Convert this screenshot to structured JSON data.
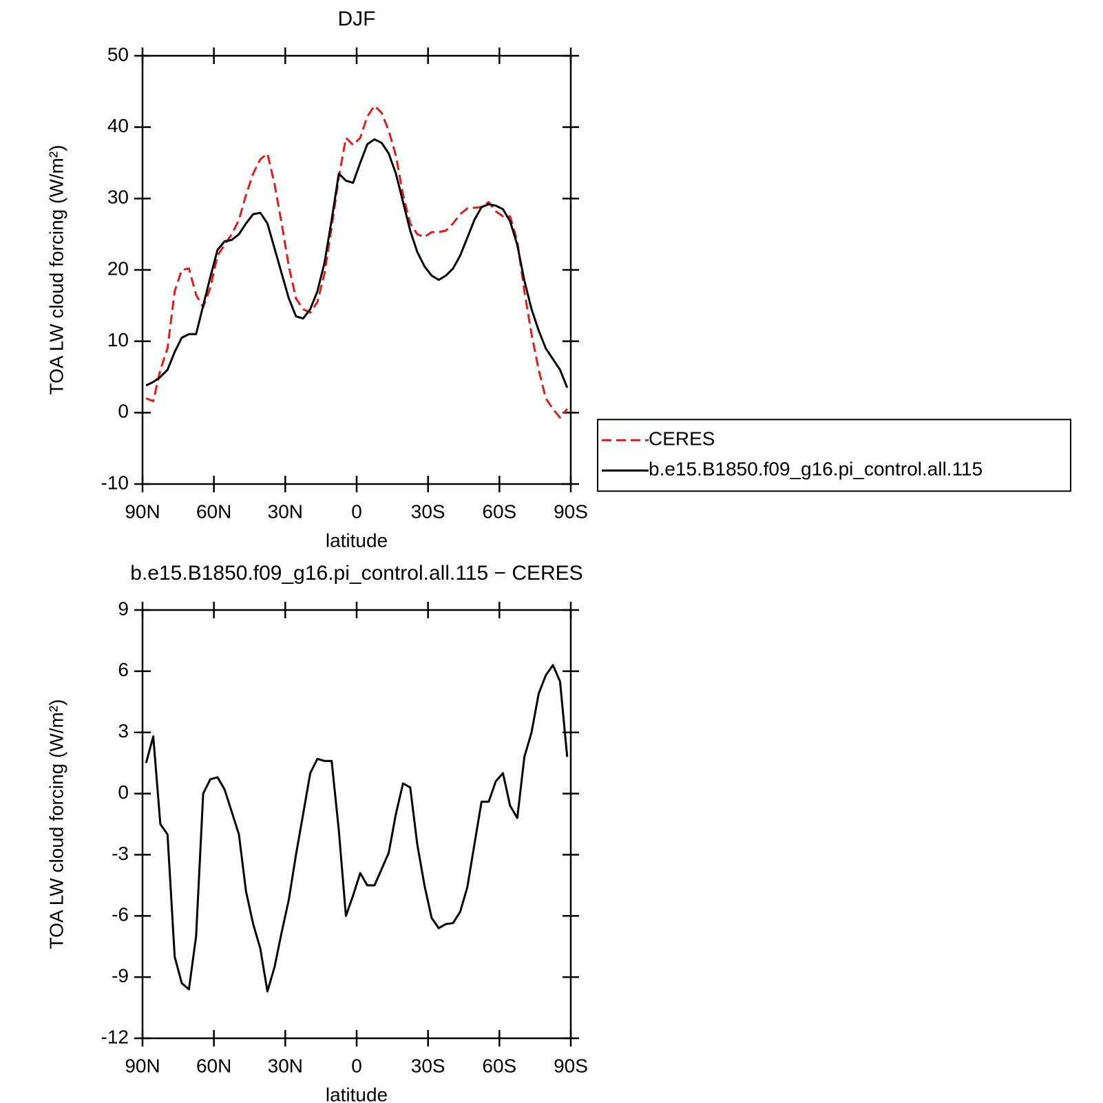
{
  "chart_data": [
    {
      "type": "line",
      "title": "DJF",
      "xlabel": "latitude",
      "ylabel": "TOA LW cloud forcing (W/m²)",
      "x": [
        88.5,
        85.5,
        82.5,
        79.5,
        76.5,
        73.5,
        70.5,
        67.5,
        64.5,
        61.5,
        58.5,
        55.5,
        52.5,
        49.5,
        46.5,
        43.5,
        40.5,
        37.5,
        34.5,
        31.5,
        28.5,
        25.5,
        22.5,
        19.5,
        16.5,
        13.5,
        10.5,
        7.5,
        4.5,
        1.5,
        -1.5,
        -4.5,
        -7.5,
        -10.5,
        -13.5,
        -16.5,
        -19.5,
        -22.5,
        -25.5,
        -28.5,
        -31.5,
        -34.5,
        -37.5,
        -40.5,
        -43.5,
        -46.5,
        -49.5,
        -52.5,
        -55.5,
        -58.5,
        -61.5,
        -64.5,
        -67.5,
        -70.5,
        -73.5,
        -76.5,
        -79.5,
        -82.5,
        -85.5,
        -88.5
      ],
      "series": [
        {
          "name": "CERES",
          "color": "#e41a1c",
          "dashed": true,
          "values": [
            2,
            1.6,
            6,
            9,
            17,
            20,
            20.2,
            16.5,
            14.8,
            17.5,
            22,
            23.5,
            25,
            27,
            30.5,
            33.5,
            35.5,
            36.3,
            32,
            26.5,
            20.5,
            16,
            14.5,
            14,
            15.5,
            19.5,
            26,
            33,
            38.5,
            37.5,
            38.5,
            41.5,
            43,
            42,
            39.5,
            36,
            30.5,
            26.5,
            25,
            24.6,
            25.3,
            25.3,
            25.5,
            26.5,
            27.8,
            28.6,
            28.7,
            28.8,
            29.5,
            28.2,
            27.5,
            27.5,
            24,
            17,
            11,
            6,
            2,
            0.5,
            -0.7,
            0.5
          ]
        },
        {
          "name": "b.e15.B1850.f09_g16.pi_control.all.115",
          "color": "#000000",
          "dashed": false,
          "values": [
            3.8,
            4.3,
            5,
            6,
            8.5,
            10.5,
            11,
            11,
            15,
            19,
            22.8,
            24,
            24.2,
            25,
            26.5,
            27.8,
            28,
            26.5,
            23,
            19.5,
            16,
            13.5,
            13.2,
            14.5,
            17,
            21,
            27,
            33.5,
            32.5,
            32.2,
            35,
            37.6,
            38.3,
            37.8,
            36.3,
            33.5,
            29.5,
            25.5,
            22.5,
            20.5,
            19.2,
            18.6,
            19.2,
            20.2,
            22,
            24.5,
            27,
            28.8,
            29.2,
            29,
            28.5,
            26.8,
            23.5,
            18.5,
            14.5,
            11.5,
            9,
            7.5,
            6,
            3.5
          ]
        }
      ],
      "xlim": [
        90,
        -90
      ],
      "xticks": [
        {
          "value": 90,
          "label": "90N"
        },
        {
          "value": 60,
          "label": "60N"
        },
        {
          "value": 30,
          "label": "30N"
        },
        0,
        {
          "value": -30,
          "label": "30S"
        },
        {
          "value": -60,
          "label": "60S"
        },
        {
          "value": -90,
          "label": "90S"
        }
      ],
      "ylim": [
        -10,
        50
      ],
      "yticks": [
        -10,
        0,
        10,
        20,
        30,
        40,
        50
      ],
      "legend": "right"
    },
    {
      "type": "line",
      "title": "b.e15.B1850.f09_g16.pi_control.all.115 − CERES",
      "xlabel": "latitude",
      "ylabel": "TOA LW cloud forcing (W/m²)",
      "x": [
        88.5,
        85.5,
        82.5,
        79.5,
        76.5,
        73.5,
        70.5,
        67.5,
        64.5,
        61.5,
        58.5,
        55.5,
        52.5,
        49.5,
        46.5,
        43.5,
        40.5,
        37.5,
        34.5,
        31.5,
        28.5,
        25.5,
        22.5,
        19.5,
        16.5,
        13.5,
        10.5,
        7.5,
        4.5,
        1.5,
        -1.5,
        -4.5,
        -7.5,
        -10.5,
        -13.5,
        -16.5,
        -19.5,
        -22.5,
        -25.5,
        -28.5,
        -31.5,
        -34.5,
        -37.5,
        -40.5,
        -43.5,
        -46.5,
        -49.5,
        -52.5,
        -55.5,
        -58.5,
        -61.5,
        -64.5,
        -67.5,
        -70.5,
        -73.5,
        -76.5,
        -79.5,
        -82.5,
        -85.5,
        -88.5
      ],
      "series": [
        {
          "color": "#000000",
          "dashed": false,
          "values": [
            1.5,
            2.8,
            -1.5,
            -2,
            -8,
            -9.3,
            -9.6,
            -7,
            0,
            0.7,
            0.8,
            0.2,
            -0.9,
            -2,
            -4.8,
            -6.4,
            -7.6,
            -9.7,
            -8.5,
            -6.8,
            -5.2,
            -3,
            -1,
            1,
            1.7,
            1.6,
            1.6,
            -1.8,
            -6,
            -5,
            -3.9,
            -4.5,
            -4.5,
            -3.7,
            -2.9,
            -1,
            0.5,
            0.3,
            -2.5,
            -4.5,
            -6.1,
            -6.6,
            -6.4,
            -6.35,
            -5.8,
            -4.6,
            -2.5,
            -0.4,
            -0.4,
            0.6,
            1,
            -0.6,
            -1.2,
            1.8,
            3,
            4.9,
            5.8,
            6.3,
            5.5,
            1.8
          ]
        }
      ],
      "xlim": [
        90,
        -90
      ],
      "xticks": [
        {
          "value": 90,
          "label": "90N"
        },
        {
          "value": 60,
          "label": "60N"
        },
        {
          "value": 30,
          "label": "30N"
        },
        0,
        {
          "value": -30,
          "label": "30S"
        },
        {
          "value": -60,
          "label": "60S"
        },
        {
          "value": -90,
          "label": "90S"
        }
      ],
      "ylim": [
        -12,
        9
      ],
      "yticks": [
        -12,
        -9,
        -6,
        -3,
        0,
        3,
        6,
        9
      ]
    }
  ]
}
